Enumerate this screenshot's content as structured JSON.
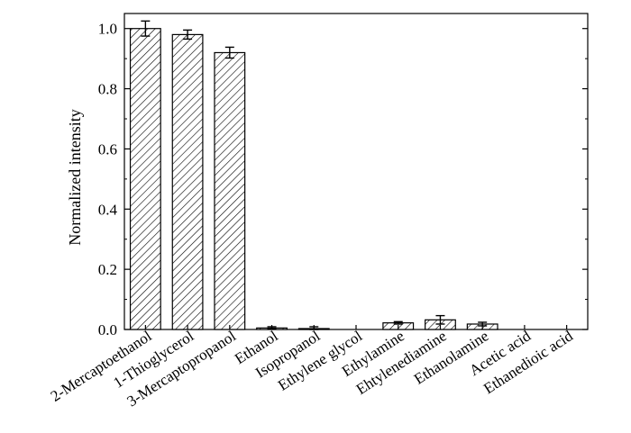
{
  "chart_data": {
    "type": "bar",
    "title": "",
    "xlabel": "",
    "ylabel": "Normalized intensity",
    "ylim": [
      0,
      1.05
    ],
    "yticks": [
      "0.0",
      "0.2",
      "0.4",
      "0.6",
      "0.8",
      "1.0"
    ],
    "grid": false,
    "legend": "none",
    "bar_fill": "hatched",
    "bar_color": "#000000",
    "categories": [
      "2-Mercaptoethanol",
      "1-Thioglycerol",
      "3-Mercaptopropanol",
      "Ethanol",
      "Isopropanol",
      "Ethylene glycol",
      "Ethylamine",
      "Ehtylenediamine",
      "Ethanolamine",
      "Acetic acid",
      "Ethanedioic acid"
    ],
    "values": [
      1.0,
      0.98,
      0.92,
      0.005,
      0.003,
      0.0,
      0.022,
      0.032,
      0.018,
      0.0,
      0.0
    ],
    "errors": [
      0.025,
      0.015,
      0.018,
      0.004,
      0.006,
      0.0,
      0.004,
      0.014,
      0.006,
      0.0,
      0.0
    ]
  }
}
